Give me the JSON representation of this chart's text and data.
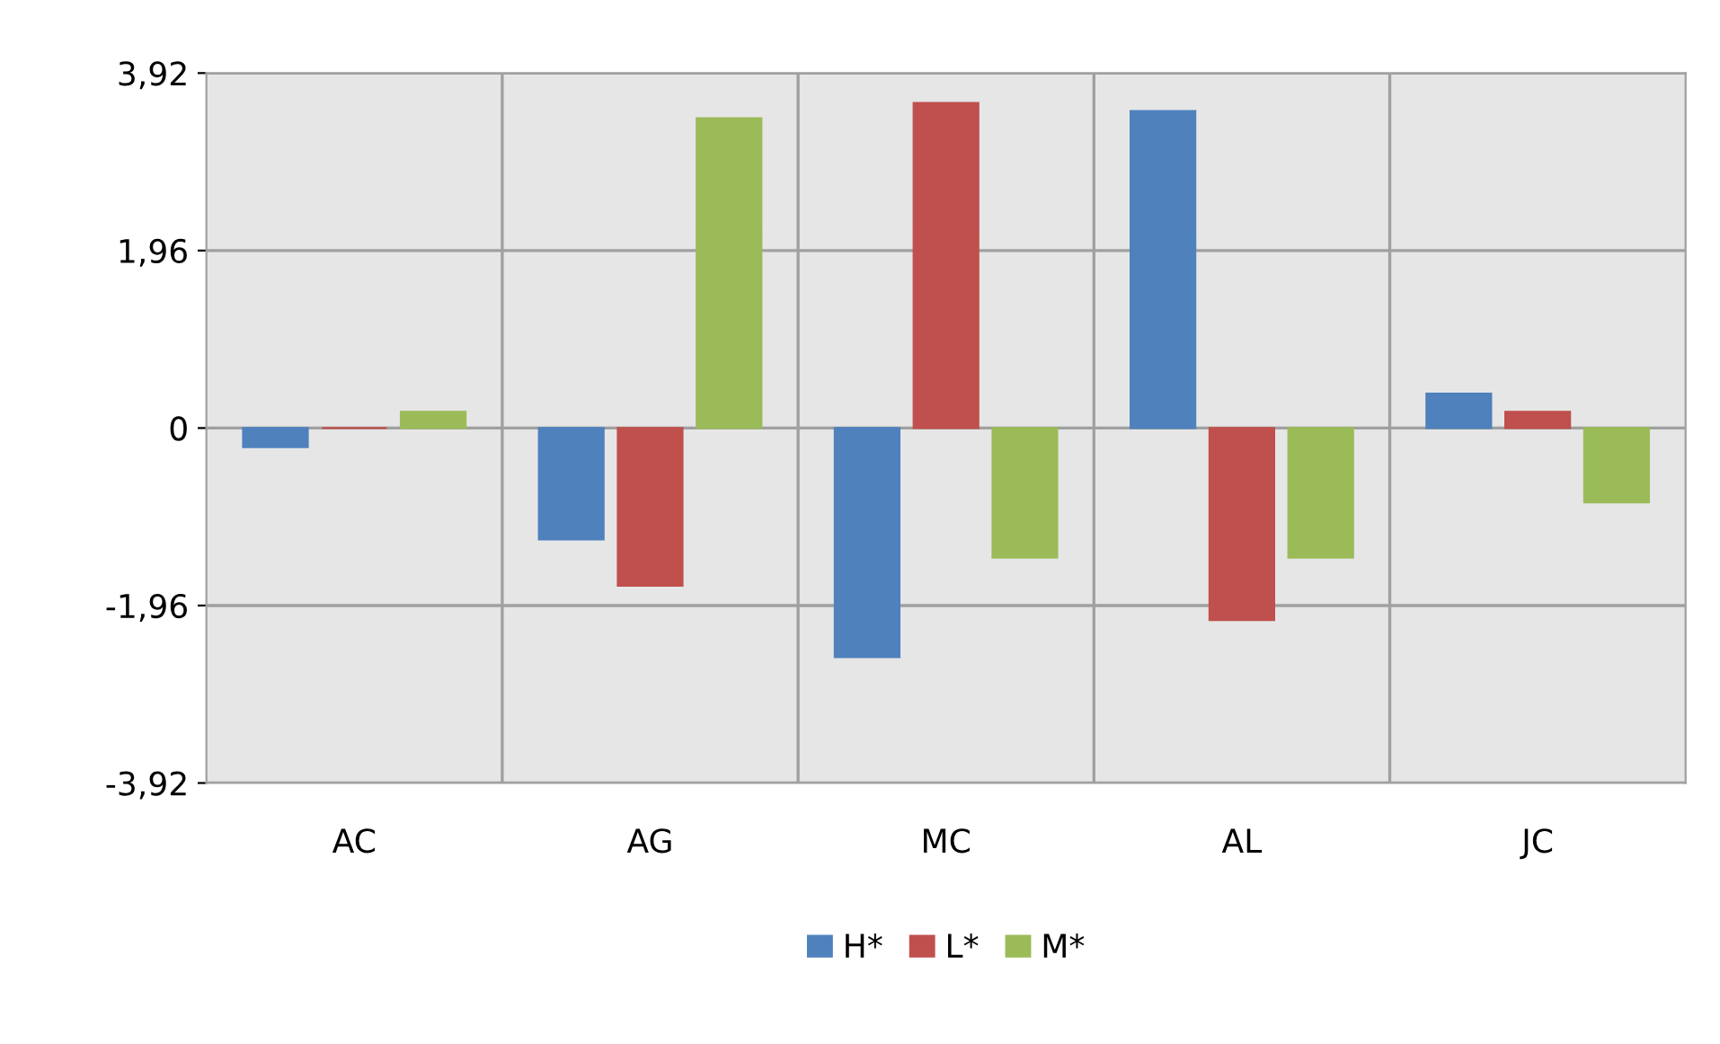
{
  "chart_data": {
    "type": "bar",
    "categories": [
      "AC",
      "AG",
      "MC",
      "AL",
      "JC"
    ],
    "series": [
      {
        "name": "H*",
        "color": "#4f81bd",
        "values": [
          -0.21,
          -1.23,
          -2.53,
          3.5,
          0.38
        ]
      },
      {
        "name": "L*",
        "color": "#c0504d",
        "values": [
          0,
          -1.74,
          3.59,
          -2.12,
          0.18
        ]
      },
      {
        "name": "M*",
        "color": "#9bbb59",
        "values": [
          0.18,
          3.42,
          -1.43,
          -1.43,
          -0.82
        ]
      }
    ],
    "ylim": [
      -3.92,
      3.92
    ],
    "yticks": [
      {
        "value": -3.92,
        "label": "-3,92"
      },
      {
        "value": -1.96,
        "label": "-1,96"
      },
      0,
      {
        "value": 1.96,
        "label": "1,96"
      },
      {
        "value": 3.92,
        "label": "3,92"
      }
    ],
    "grid": true,
    "legend": "bottom"
  }
}
